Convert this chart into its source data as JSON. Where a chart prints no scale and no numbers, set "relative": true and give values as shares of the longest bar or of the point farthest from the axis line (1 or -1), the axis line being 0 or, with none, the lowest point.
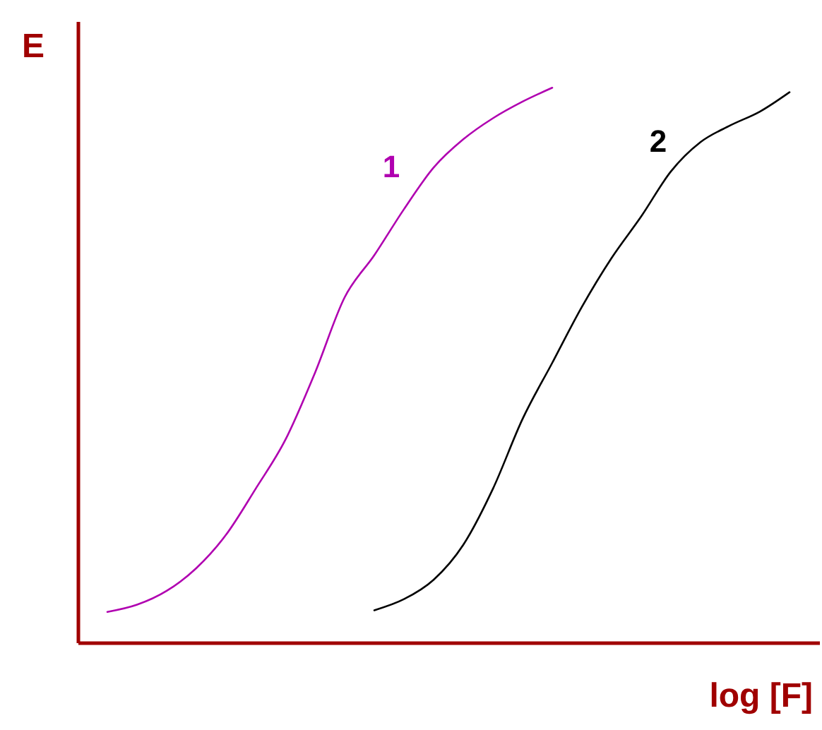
{
  "chart_data": {
    "type": "line",
    "xlabel": "log [F]",
    "ylabel": "E",
    "relative": true,
    "grid": false,
    "marker": "none",
    "line_style": "solid",
    "categories": [
      null,
      null,
      null,
      null,
      null,
      null,
      null,
      null,
      null,
      null,
      null,
      null,
      null,
      null,
      null,
      null,
      null,
      null,
      null,
      null,
      null,
      null,
      null,
      null
    ],
    "series": [
      {
        "name": "1",
        "color": "#b000b0",
        "values": [
          0.055,
          0.068,
          0.093,
          0.134,
          0.194,
          0.277,
          0.365,
          0.486,
          0.622,
          0.698,
          0.781,
          0.856,
          0.907,
          0.945,
          0.975,
          1.0,
          null,
          null,
          null,
          null,
          null,
          null,
          null,
          null
        ]
      },
      {
        "name": "2",
        "color": "#000000",
        "values": [
          null,
          null,
          null,
          null,
          null,
          null,
          null,
          null,
          null,
          0.058,
          0.078,
          0.113,
          0.176,
          0.277,
          0.403,
          0.504,
          0.605,
          0.693,
          0.768,
          0.849,
          0.902,
          0.932,
          0.957,
          0.992
        ]
      }
    ]
  }
}
